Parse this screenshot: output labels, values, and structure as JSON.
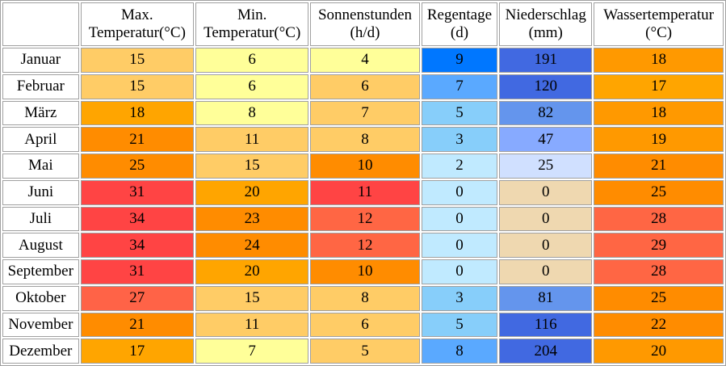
{
  "table": {
    "headers": [
      {
        "line1": "Max.",
        "line2": "Temperatur(°C)"
      },
      {
        "line1": "Min.",
        "line2": "Temperatur(°C)"
      },
      {
        "line1": "Sonnenstunden",
        "line2": "(h/d)"
      },
      {
        "line1": "Regentage",
        "line2": "(d)"
      },
      {
        "line1": "Niederschlag",
        "line2": "(mm)"
      },
      {
        "line1": "Wassertemperatur",
        "line2": "(°C)"
      }
    ],
    "rows": [
      {
        "month": "Januar",
        "values": [
          "15",
          "6",
          "4",
          "9",
          "191",
          "18"
        ]
      },
      {
        "month": "Februar",
        "values": [
          "15",
          "6",
          "6",
          "7",
          "120",
          "17"
        ]
      },
      {
        "month": "März",
        "values": [
          "18",
          "8",
          "7",
          "5",
          "82",
          "18"
        ]
      },
      {
        "month": "April",
        "values": [
          "21",
          "11",
          "8",
          "3",
          "47",
          "19"
        ]
      },
      {
        "month": "Mai",
        "values": [
          "25",
          "15",
          "10",
          "2",
          "25",
          "21"
        ]
      },
      {
        "month": "Juni",
        "values": [
          "31",
          "20",
          "11",
          "0",
          "0",
          "25"
        ]
      },
      {
        "month": "Juli",
        "values": [
          "34",
          "23",
          "12",
          "0",
          "0",
          "28"
        ]
      },
      {
        "month": "August",
        "values": [
          "34",
          "24",
          "12",
          "0",
          "0",
          "29"
        ]
      },
      {
        "month": "September",
        "values": [
          "31",
          "20",
          "10",
          "0",
          "0",
          "28"
        ]
      },
      {
        "month": "Oktober",
        "values": [
          "27",
          "15",
          "8",
          "3",
          "81",
          "25"
        ]
      },
      {
        "month": "November",
        "values": [
          "21",
          "11",
          "6",
          "5",
          "116",
          "22"
        ]
      },
      {
        "month": "Dezember",
        "values": [
          "17",
          "7",
          "5",
          "8",
          "204",
          "20"
        ]
      }
    ],
    "cell_colors": [
      [
        "#ffcc66",
        "#ffff99",
        "#ffff99",
        "#0077ff",
        "#4169e1",
        "#ff9900"
      ],
      [
        "#ffcc66",
        "#ffff99",
        "#ffcc66",
        "#5aa9ff",
        "#4169e1",
        "#ffa500"
      ],
      [
        "#ffa500",
        "#ffff99",
        "#ffcc66",
        "#87cefa",
        "#6495ed",
        "#ff9900"
      ],
      [
        "#ff8c00",
        "#ffcc66",
        "#ffcc66",
        "#87cefa",
        "#87aaff",
        "#ff9900"
      ],
      [
        "#ff8c00",
        "#ffcc66",
        "#ff8c00",
        "#c0eaff",
        "#d0e0ff",
        "#ff8c00"
      ],
      [
        "#ff4444",
        "#ffa500",
        "#ff4444",
        "#c0eaff",
        "#efd8b0",
        "#ff8c00"
      ],
      [
        "#ff4444",
        "#ff8c00",
        "#ff6644",
        "#c0eaff",
        "#efd8b0",
        "#ff6644"
      ],
      [
        "#ff4444",
        "#ff8c00",
        "#ff6644",
        "#c0eaff",
        "#efd8b0",
        "#ff6644"
      ],
      [
        "#ff4444",
        "#ffa500",
        "#ff8c00",
        "#c0eaff",
        "#efd8b0",
        "#ff6644"
      ],
      [
        "#ff6347",
        "#ffcc66",
        "#ffcc66",
        "#87cefa",
        "#6495ed",
        "#ff8c00"
      ],
      [
        "#ff8c00",
        "#ffcc66",
        "#ffcc66",
        "#87cefa",
        "#4169e1",
        "#ff8c00"
      ],
      [
        "#ffa500",
        "#ffff99",
        "#ffcc66",
        "#5aa9ff",
        "#4169e1",
        "#ff9900"
      ]
    ]
  }
}
